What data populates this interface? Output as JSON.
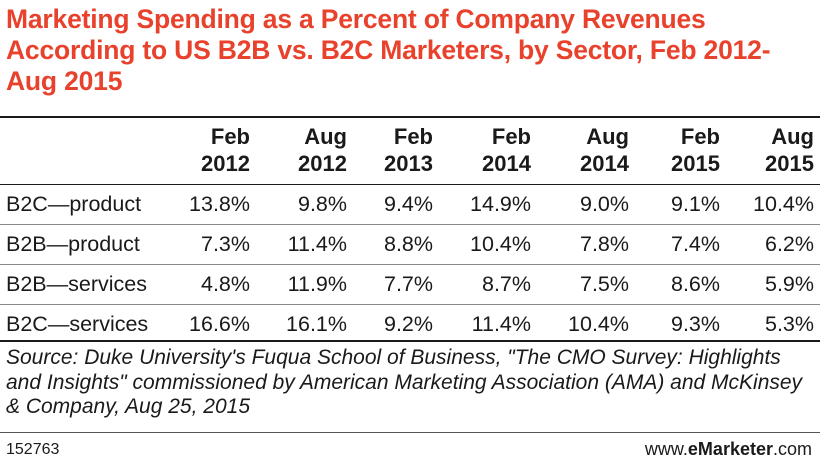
{
  "title": "Marketing Spending as a Percent of Company Revenues According to US B2B vs. B2C Marketers, by Sector, Feb 2012-Aug 2015",
  "chart_data": {
    "type": "table",
    "title": "Marketing Spending as a Percent of Company Revenues According to US B2B vs. B2C Marketers, by Sector, Feb 2012-Aug 2015",
    "columns": [
      {
        "line1": "Feb",
        "line2": "2012"
      },
      {
        "line1": "Aug",
        "line2": "2012"
      },
      {
        "line1": "Feb",
        "line2": "2013"
      },
      {
        "line1": "Feb",
        "line2": "2014"
      },
      {
        "line1": "Aug",
        "line2": "2014"
      },
      {
        "line1": "Feb",
        "line2": "2015"
      },
      {
        "line1": "Aug",
        "line2": "2015"
      }
    ],
    "rows": [
      {
        "label": "B2C—product",
        "values": [
          "13.8%",
          "9.8%",
          "9.4%",
          "14.9%",
          "9.0%",
          "9.1%",
          "10.4%"
        ]
      },
      {
        "label": "B2B—product",
        "values": [
          "7.3%",
          "11.4%",
          "8.8%",
          "10.4%",
          "7.8%",
          "7.4%",
          "6.2%"
        ]
      },
      {
        "label": "B2B—services",
        "values": [
          "4.8%",
          "11.9%",
          "7.7%",
          "8.7%",
          "7.5%",
          "8.6%",
          "5.9%"
        ]
      },
      {
        "label": "B2C—services",
        "values": [
          "16.6%",
          "16.1%",
          "9.2%",
          "11.4%",
          "10.4%",
          "9.3%",
          "5.3%"
        ]
      }
    ]
  },
  "source": "Source: Duke University's Fuqua School of Business, \"The CMO Survey: Highlights and Insights\" commissioned by American Marketing Association (AMA) and McKinsey & Company, Aug 25, 2015",
  "footer": {
    "id": "152763",
    "brand_prefix": "www.",
    "brand_bold": "eMarketer",
    "brand_suffix": ".com"
  },
  "colors": {
    "title": "#e8412c",
    "text": "#1a1a1a",
    "rule": "#1a1a1a"
  }
}
